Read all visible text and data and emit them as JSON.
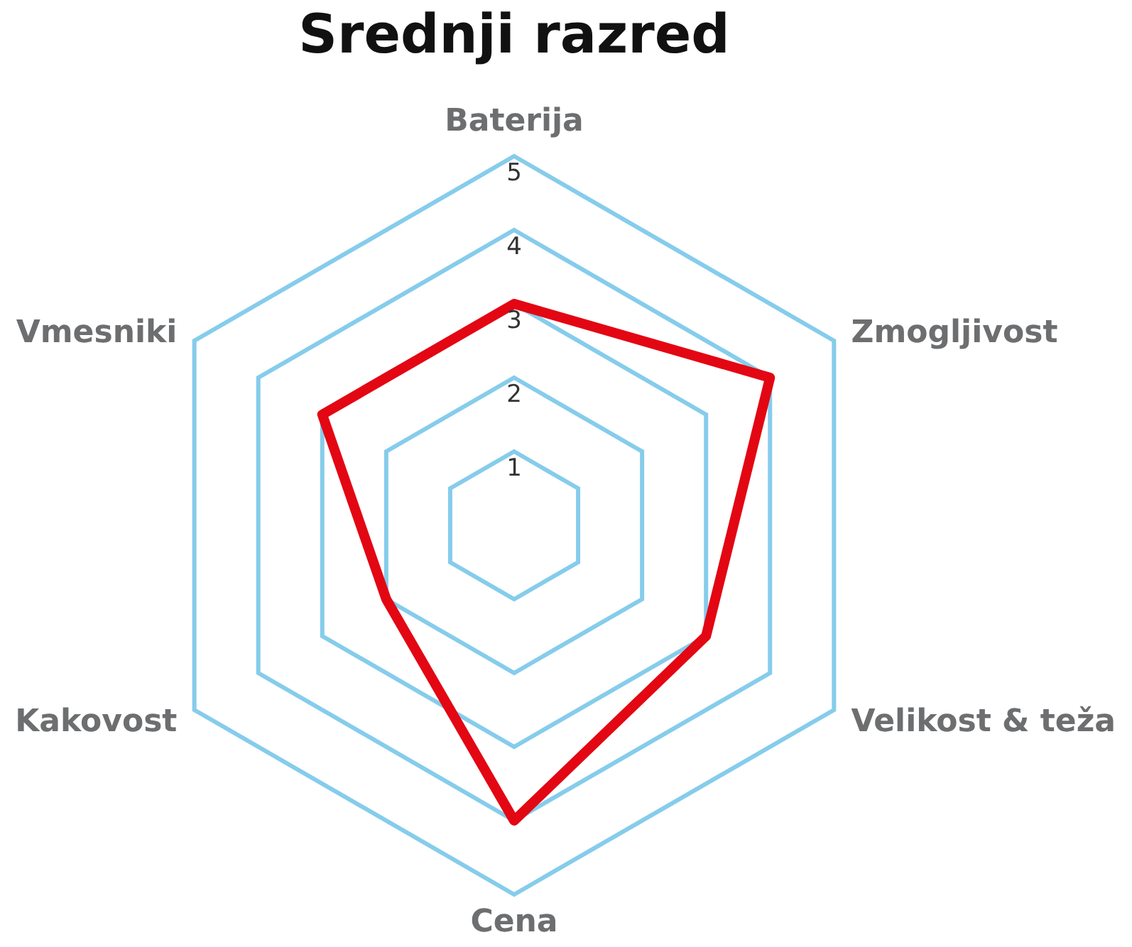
{
  "chart_data": {
    "type": "radar",
    "title": "Srednji razred",
    "categories": [
      "Baterija",
      "Zmogljivost",
      "Velikost & teža",
      "Cena",
      "Kakovost",
      "Vmesniki"
    ],
    "series": [
      {
        "color": "#e30613",
        "values": [
          3,
          4,
          3,
          4,
          2,
          3
        ]
      }
    ],
    "ylim": [
      0,
      5
    ],
    "yticks": [
      1,
      2,
      3,
      4,
      5
    ],
    "grid": true,
    "marker": "none"
  }
}
